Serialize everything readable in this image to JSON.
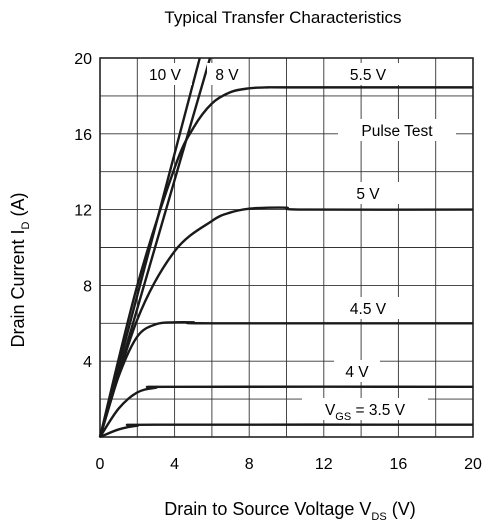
{
  "chart_data": {
    "type": "line",
    "title": "Typical Transfer Characteristics",
    "xlabel": {
      "main": "Drain to Source Voltage  V",
      "sub": "DS",
      "unit": "  (V)"
    },
    "ylabel": {
      "main": "Drain Current  I",
      "sub": "D",
      "unit": "  (A)"
    },
    "xlim": [
      0,
      20
    ],
    "ylim": [
      0,
      20
    ],
    "xticks": [
      "0",
      "4",
      "8",
      "12",
      "16",
      "20"
    ],
    "yticks": [
      "4",
      "8",
      "12",
      "16",
      "20"
    ],
    "grid": true,
    "annotation": "Pulse Test",
    "series": [
      {
        "name": "10 V",
        "x": [
          0,
          5.35
        ],
        "y": [
          0,
          20
        ]
      },
      {
        "name": "8 V",
        "x": [
          0,
          5.9
        ],
        "y": [
          0,
          20
        ]
      },
      {
        "name": "5.5 V",
        "x": [
          0,
          2,
          4,
          5,
          6,
          7,
          8,
          9,
          10,
          20
        ],
        "y": [
          0,
          8,
          14.2,
          16.3,
          17.6,
          18.2,
          18.4,
          18.45,
          18.45,
          18.45
        ]
      },
      {
        "name": "5 V",
        "x": [
          0,
          2,
          4,
          6,
          7,
          8,
          9,
          10,
          11,
          20
        ],
        "y": [
          0,
          6.2,
          9.8,
          11.4,
          11.85,
          12.05,
          12.1,
          12.1,
          12.0,
          12.0
        ]
      },
      {
        "name": "4.5 V",
        "x": [
          0,
          1,
          2,
          3,
          4,
          5,
          6,
          20
        ],
        "y": [
          0,
          3.2,
          5.3,
          5.95,
          6.05,
          6.05,
          6.0,
          6.0
        ]
      },
      {
        "name": "4 V",
        "x": [
          0,
          1,
          2,
          3,
          4,
          20
        ],
        "y": [
          0,
          1.5,
          2.35,
          2.6,
          2.65,
          2.65
        ]
      },
      {
        "name": "V_GS = 3.5 V",
        "x": [
          0,
          1,
          2,
          3,
          20
        ],
        "y": [
          0,
          0.4,
          0.6,
          0.65,
          0.65
        ]
      }
    ],
    "series_labels": [
      {
        "text": "10 V"
      },
      {
        "text": "8 V"
      },
      {
        "text": "5.5 V"
      },
      {
        "text": "5 V"
      },
      {
        "text": "4.5 V"
      },
      {
        "text": "4 V"
      },
      {
        "main": "V",
        "sub": "GS",
        "rest": " = 3.5 V"
      }
    ]
  }
}
